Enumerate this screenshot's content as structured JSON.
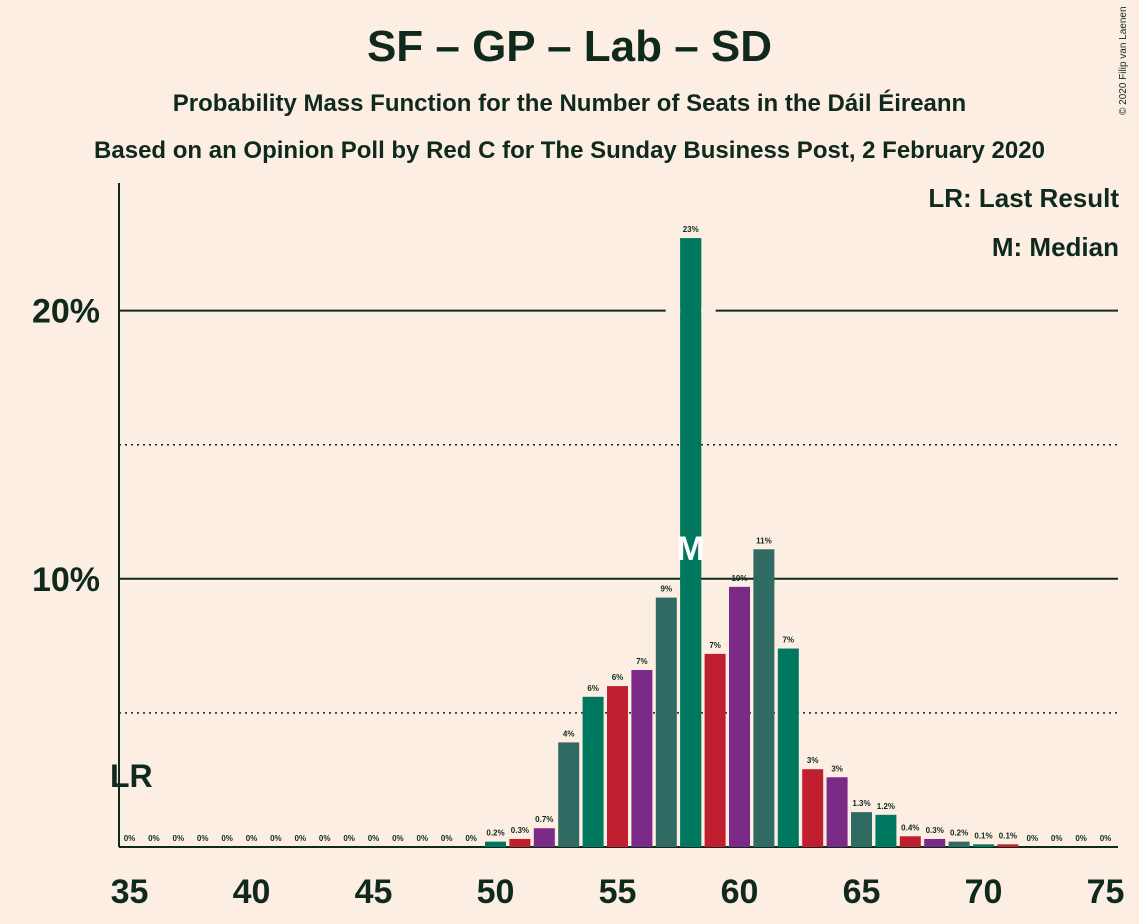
{
  "header": {
    "title": "SF – GP – Lab – SD",
    "subtitle": "Probability Mass Function for the Number of Seats in the Dáil Éireann",
    "source": "Based on an Opinion Poll by Red C for The Sunday Business Post, 2 February 2020",
    "copyright": "© 2020 Filip van Laenen"
  },
  "legend": {
    "last_result": "LR: Last Result",
    "median": "M: Median"
  },
  "colors": {
    "background": "#fdeee3",
    "text": "#0f2a1d",
    "series": [
      "#c01f2f",
      "#7b2a88",
      "#2f6a63",
      "#00785f"
    ]
  },
  "chart_data": {
    "type": "bar",
    "x": [
      35,
      36,
      37,
      38,
      39,
      40,
      41,
      42,
      43,
      44,
      45,
      46,
      47,
      48,
      49,
      50,
      51,
      52,
      53,
      54,
      55,
      56,
      57,
      58,
      59,
      60,
      61,
      62,
      63,
      64,
      65,
      66,
      67,
      68,
      69,
      70,
      71,
      72,
      73,
      74,
      75
    ],
    "values": [
      0,
      0,
      0,
      0,
      0,
      0,
      0,
      0,
      0,
      0,
      0,
      0,
      0,
      0,
      0,
      0.2,
      0.3,
      0.7,
      3.9,
      5.6,
      6.0,
      6.6,
      9.3,
      22.7,
      7.2,
      9.7,
      11.1,
      7.4,
      2.9,
      2.6,
      1.3,
      1.2,
      0.4,
      0.3,
      0.2,
      0.1,
      0.1,
      0,
      0,
      0,
      0
    ],
    "labels": [
      "0%",
      "0%",
      "0%",
      "0%",
      "0%",
      "0%",
      "0%",
      "0%",
      "0%",
      "0%",
      "0%",
      "0%",
      "0%",
      "0%",
      "0%",
      "0.2%",
      "0.3%",
      "0.7%",
      "4%",
      "6%",
      "6%",
      "7%",
      "9%",
      "23%",
      "7%",
      "10%",
      "11%",
      "7%",
      "3%",
      "3%",
      "1.3%",
      "1.2%",
      "0.4%",
      "0.3%",
      "0.2%",
      "0.1%",
      "0.1%",
      "0%",
      "0%",
      "0%",
      "0%"
    ],
    "xticks": [
      35,
      40,
      45,
      50,
      55,
      60,
      65,
      70,
      75
    ],
    "xtick_labels": [
      "35",
      "40",
      "45",
      "50",
      "55",
      "60",
      "65",
      "70",
      "75"
    ],
    "yticks_major": [
      10,
      20
    ],
    "ytick_labels": [
      "10%",
      "20%"
    ],
    "yticks_minor": [
      5,
      15
    ],
    "ylim": [
      0,
      24.7
    ],
    "xlim": [
      35,
      75
    ],
    "last_result": {
      "x": 35,
      "label": "LR"
    },
    "median": {
      "x": 58,
      "label": "M"
    },
    "xlabel": "",
    "ylabel": ""
  }
}
